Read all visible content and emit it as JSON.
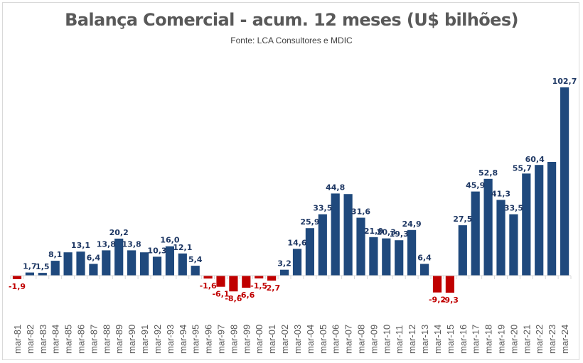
{
  "chart_data": {
    "type": "bar",
    "title": "Balança Comercial - acum. 12 meses (U$ bilhões)",
    "subtitle": "Fonte: LCA Consultores e MDIC",
    "xlabel": "",
    "ylabel": "",
    "ylim": [
      -12,
      105
    ],
    "grid": false,
    "legend": "none",
    "positive_color": "#1f497d",
    "negative_color": "#c00000",
    "label_positive_color": "#1f3864",
    "label_negative_color": "#c00000",
    "categories": [
      "mar-81",
      "mar-82",
      "mar-83",
      "mar-84",
      "mar-85",
      "mar-86",
      "mar-87",
      "mar-88",
      "mar-89",
      "mar-90",
      "mar-91",
      "mar-92",
      "mar-93",
      "mar-94",
      "mar-95",
      "mar-96",
      "mar-97",
      "mar-98",
      "mar-99",
      "mar-00",
      "mar-01",
      "mar-02",
      "mar-03",
      "mar-04",
      "mar-05",
      "mar-06",
      "mar-07",
      "mar-08",
      "mar-09",
      "mar-10",
      "mar-11",
      "mar-12",
      "mar-13",
      "mar-14",
      "mar-15",
      "mar-16",
      "mar-17",
      "mar-18",
      "mar-19",
      "mar-20",
      "mar-21",
      "mar-22",
      "mar-23",
      "mar-24"
    ],
    "values": [
      -1.9,
      1.7,
      1.5,
      8.1,
      12.7,
      13.1,
      6.4,
      13.8,
      20.2,
      13.8,
      12.7,
      10.3,
      16.0,
      12.1,
      5.4,
      -1.6,
      -6.1,
      -8.6,
      -6.6,
      -1.5,
      -2.7,
      3.2,
      14.6,
      25.9,
      33.5,
      44.8,
      44.5,
      31.6,
      21.0,
      20.3,
      19.3,
      24.9,
      6.4,
      -9.2,
      -9.3,
      27.5,
      45.9,
      52.8,
      41.3,
      33.5,
      55.7,
      60.4,
      62.0,
      102.7
    ],
    "data_labels": [
      "-1,9",
      "1,7",
      "1,5",
      "8,1",
      "",
      "13,1",
      "6,4",
      "13,8",
      "20,2",
      "13,8",
      "",
      "10,3",
      "16,0",
      "12,1",
      "5,4",
      "-1,6",
      "-6,1",
      "-8,6",
      "-6,6",
      "-1,5",
      "-2,7",
      "3,2",
      "14,6",
      "25,9",
      "33,5",
      "44,8",
      "",
      "31,6",
      "21,0",
      "20,3",
      "19,3",
      "24,9",
      "6,4",
      "-9,2",
      "-9,3",
      "27,5",
      "45,9",
      "52,8",
      "41,3",
      "33,5",
      "55,7",
      "60,4",
      "",
      "102,7"
    ]
  }
}
